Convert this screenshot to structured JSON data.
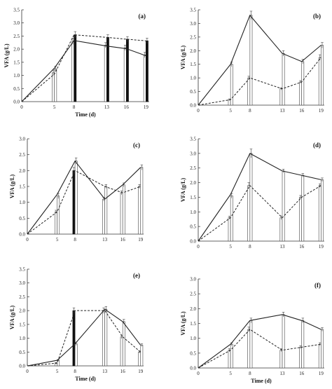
{
  "figure": {
    "xlabel": "Time (d)",
    "ylabel": "VFA (g/L)"
  },
  "chart_data": [
    {
      "type": "line",
      "panel": "(a)",
      "show_xlabel": true,
      "show_ylabel": true,
      "xlabel": "Time (d)",
      "ylabel": "VFA (g/L)",
      "x": [
        0,
        5,
        8,
        13,
        16,
        19
      ],
      "xlim": [
        0,
        19.5
      ],
      "ylim": [
        0,
        3.5
      ],
      "x_ticks": [
        "0",
        "5",
        "8",
        "13",
        "16",
        "19"
      ],
      "y_ticks": [
        "0.0",
        "0.5",
        "1.0",
        "1.5",
        "2.0",
        "2.5",
        "3.0",
        "3.5"
      ],
      "series": [
        {
          "style": "solid",
          "values": [
            0,
            1.28,
            2.33,
            2.12,
            2.02,
            1.75
          ]
        },
        {
          "style": "dashed",
          "values": [
            0,
            1.05,
            2.55,
            2.45,
            2.38,
            2.32
          ]
        }
      ],
      "bars": [
        {
          "x": 5,
          "fill": "white",
          "value": 1.1,
          "err": 0.1
        },
        {
          "x": 5,
          "fill": "white",
          "value": 1.25,
          "err": 0.1
        },
        {
          "x": 8,
          "fill": "white",
          "value": 2.3,
          "err": 0.12
        },
        {
          "x": 8,
          "fill": "black",
          "value": 2.55,
          "err": 0.12
        },
        {
          "x": 13,
          "fill": "white",
          "value": 2.15,
          "err": 0.1
        },
        {
          "x": 13,
          "fill": "black",
          "value": 2.45,
          "err": 0.1
        },
        {
          "x": 16,
          "fill": "white",
          "value": 2.05,
          "err": 0.1
        },
        {
          "x": 16,
          "fill": "black",
          "value": 2.38,
          "err": 0.1
        },
        {
          "x": 19,
          "fill": "white",
          "value": 1.78,
          "err": 0.1
        },
        {
          "x": 19,
          "fill": "black",
          "value": 2.32,
          "err": 0.1
        }
      ]
    },
    {
      "type": "line",
      "panel": "(b)",
      "show_xlabel": false,
      "show_ylabel": true,
      "xlabel": "Time (d)",
      "ylabel": "VFA (g/L)",
      "x": [
        0,
        5,
        8,
        13,
        16,
        19
      ],
      "xlim": [
        0,
        19.5
      ],
      "ylim": [
        0,
        3.5
      ],
      "x_ticks": [
        "0",
        "5",
        "8",
        "13",
        "16",
        "19"
      ],
      "y_ticks": [
        "0.0",
        "0.5",
        "1.0",
        "1.5",
        "2.0",
        "2.5",
        "3.0",
        "3.5"
      ],
      "series": [
        {
          "style": "solid",
          "values": [
            0,
            1.5,
            3.3,
            1.9,
            1.6,
            2.2
          ]
        },
        {
          "style": "dashed",
          "values": [
            0,
            0.2,
            1.0,
            0.6,
            0.85,
            1.75
          ]
        }
      ],
      "bars": [
        {
          "x": 5,
          "fill": "white",
          "value": 0.2,
          "err": 0.03
        },
        {
          "x": 5,
          "fill": "white",
          "value": 1.5,
          "err": 0.08
        },
        {
          "x": 8,
          "fill": "white",
          "value": 1.0,
          "err": 0.06
        },
        {
          "x": 8,
          "fill": "white",
          "value": 3.3,
          "err": 0.15
        },
        {
          "x": 13,
          "fill": "white",
          "value": 0.6,
          "err": 0.04
        },
        {
          "x": 13,
          "fill": "white",
          "value": 1.9,
          "err": 0.1
        },
        {
          "x": 16,
          "fill": "white",
          "value": 0.85,
          "err": 0.05
        },
        {
          "x": 16,
          "fill": "white",
          "value": 1.6,
          "err": 0.08
        },
        {
          "x": 19,
          "fill": "white",
          "value": 1.75,
          "err": 0.1
        },
        {
          "x": 19,
          "fill": "white",
          "value": 2.2,
          "err": 0.1
        }
      ]
    },
    {
      "type": "line",
      "panel": "(c)",
      "show_xlabel": false,
      "show_ylabel": true,
      "xlabel": "Time (d)",
      "ylabel": "VFA (g/L)",
      "x": [
        0,
        5,
        8,
        13,
        16,
        19
      ],
      "xlim": [
        0,
        19.5
      ],
      "ylim": [
        0,
        3.0
      ],
      "x_ticks": [
        "0",
        "5",
        "8",
        "13",
        "16",
        "19"
      ],
      "y_ticks": [
        "0.0",
        "0.5",
        "1.0",
        "1.5",
        "2.0",
        "2.5",
        "3.0"
      ],
      "series": [
        {
          "style": "solid",
          "values": [
            0,
            1.25,
            2.3,
            1.1,
            1.55,
            2.1
          ]
        },
        {
          "style": "dashed",
          "values": [
            0,
            0.7,
            2.0,
            1.5,
            1.3,
            1.5
          ]
        }
      ],
      "bars": [
        {
          "x": 5,
          "fill": "white",
          "value": 0.7,
          "err": 0.05
        },
        {
          "x": 5,
          "fill": "white",
          "value": 1.2,
          "err": 0.08
        },
        {
          "x": 8,
          "fill": "black",
          "value": 2.0,
          "err": 0.1
        },
        {
          "x": 8,
          "fill": "white",
          "value": 2.3,
          "err": 0.1
        },
        {
          "x": 13,
          "fill": "white",
          "value": 1.1,
          "err": 0.06
        },
        {
          "x": 13,
          "fill": "white",
          "value": 1.5,
          "err": 0.06
        },
        {
          "x": 16,
          "fill": "white",
          "value": 1.3,
          "err": 0.06
        },
        {
          "x": 16,
          "fill": "white",
          "value": 1.55,
          "err": 0.06
        },
        {
          "x": 19,
          "fill": "white",
          "value": 1.5,
          "err": 0.06
        },
        {
          "x": 19,
          "fill": "white",
          "value": 2.1,
          "err": 0.08
        }
      ]
    },
    {
      "type": "line",
      "panel": "(d)",
      "show_xlabel": false,
      "show_ylabel": true,
      "xlabel": "Time (d)",
      "ylabel": "VFA (g/L)",
      "x": [
        0,
        5,
        8,
        13,
        16,
        19
      ],
      "xlim": [
        0,
        19.5
      ],
      "ylim": [
        0,
        3.5
      ],
      "x_ticks": [
        "0",
        "5",
        "8",
        "13",
        "16",
        "19"
      ],
      "y_ticks": [
        "0.0",
        "0.5",
        "1.0",
        "1.5",
        "2.0",
        "2.5",
        "3.0",
        "3.5"
      ],
      "series": [
        {
          "style": "solid",
          "values": [
            0,
            1.6,
            3.0,
            2.4,
            2.25,
            2.1
          ]
        },
        {
          "style": "dashed",
          "values": [
            0,
            0.8,
            1.9,
            0.8,
            1.5,
            1.9
          ]
        }
      ],
      "bars": [
        {
          "x": 5,
          "fill": "white",
          "value": 0.8,
          "err": 0.05
        },
        {
          "x": 5,
          "fill": "white",
          "value": 1.55,
          "err": 0.08
        },
        {
          "x": 8,
          "fill": "white",
          "value": 1.9,
          "err": 0.1
        },
        {
          "x": 8,
          "fill": "white",
          "value": 3.0,
          "err": 0.15
        },
        {
          "x": 13,
          "fill": "white",
          "value": 0.8,
          "err": 0.06
        },
        {
          "x": 13,
          "fill": "white",
          "value": 2.4,
          "err": 0.06
        },
        {
          "x": 16,
          "fill": "white",
          "value": 1.5,
          "err": 0.06
        },
        {
          "x": 16,
          "fill": "white",
          "value": 2.25,
          "err": 0.06
        },
        {
          "x": 19,
          "fill": "white",
          "value": 1.9,
          "err": 0.06
        },
        {
          "x": 19,
          "fill": "white",
          "value": 2.1,
          "err": 0.06
        }
      ]
    },
    {
      "type": "line",
      "panel": "(e)",
      "show_xlabel": true,
      "show_ylabel": true,
      "xlabel": "Time (d)",
      "ylabel": "VFA (g/L)",
      "x": [
        0,
        5,
        8,
        13,
        16,
        19
      ],
      "xlim": [
        0,
        19.5
      ],
      "ylim": [
        0,
        3.5
      ],
      "x_ticks": [
        "0",
        "5",
        "8",
        "13",
        "16",
        "19"
      ],
      "y_ticks": [
        "0.0",
        "0.5",
        "1.0",
        "1.5",
        "2.0",
        "2.5",
        "3.0",
        "3.5"
      ],
      "series": [
        {
          "style": "solid",
          "values": [
            0,
            0.2,
            0.8,
            2.05,
            1.6,
            0.75
          ]
        },
        {
          "style": "dashed",
          "values": [
            0,
            0.1,
            2.0,
            2.0,
            1.05,
            0.5
          ]
        }
      ],
      "bars": [
        {
          "x": 5,
          "fill": "white",
          "value": 0.1,
          "err": 0.02
        },
        {
          "x": 5,
          "fill": "white",
          "value": 0.2,
          "err": 0.03
        },
        {
          "x": 8,
          "fill": "black",
          "value": 2.0,
          "err": 0.1
        },
        {
          "x": 8,
          "fill": "white",
          "value": 0.8,
          "err": 0.06
        },
        {
          "x": 13,
          "fill": "white",
          "value": 2.0,
          "err": 0.1
        },
        {
          "x": 13,
          "fill": "white",
          "value": 2.05,
          "err": 0.1
        },
        {
          "x": 16,
          "fill": "white",
          "value": 1.05,
          "err": 0.06
        },
        {
          "x": 16,
          "fill": "white",
          "value": 1.6,
          "err": 0.08
        },
        {
          "x": 19,
          "fill": "white",
          "value": 0.5,
          "err": 0.04
        },
        {
          "x": 19,
          "fill": "white",
          "value": 0.75,
          "err": 0.05
        }
      ]
    },
    {
      "type": "line",
      "panel": "(f)",
      "show_xlabel": true,
      "show_ylabel": true,
      "xlabel": "Time (d)",
      "ylabel": "VFA (g/L)",
      "x": [
        0,
        5,
        8,
        13,
        16,
        19
      ],
      "xlim": [
        0,
        19.5
      ],
      "ylim": [
        0,
        3.0
      ],
      "x_ticks": [
        "0",
        "5",
        "8",
        "13",
        "16",
        "19"
      ],
      "y_ticks": [
        "0.0",
        "0.5",
        "1.0",
        "1.5",
        "2.0",
        "2.5",
        "3.0"
      ],
      "series": [
        {
          "style": "solid",
          "values": [
            0,
            0.8,
            1.6,
            1.8,
            1.6,
            1.3
          ]
        },
        {
          "style": "dashed",
          "values": [
            0,
            0.6,
            1.3,
            0.6,
            0.7,
            0.8
          ]
        }
      ],
      "bars": [
        {
          "x": 5,
          "fill": "white",
          "value": 0.6,
          "err": 0.05
        },
        {
          "x": 5,
          "fill": "white",
          "value": 0.8,
          "err": 0.05
        },
        {
          "x": 8,
          "fill": "white",
          "value": 1.3,
          "err": 0.08
        },
        {
          "x": 8,
          "fill": "white",
          "value": 1.6,
          "err": 0.08
        },
        {
          "x": 13,
          "fill": "white",
          "value": 0.6,
          "err": 0.05
        },
        {
          "x": 13,
          "fill": "white",
          "value": 1.8,
          "err": 0.08
        },
        {
          "x": 16,
          "fill": "white",
          "value": 0.7,
          "err": 0.05
        },
        {
          "x": 16,
          "fill": "white",
          "value": 1.6,
          "err": 0.08
        },
        {
          "x": 19,
          "fill": "white",
          "value": 0.8,
          "err": 0.05
        },
        {
          "x": 19,
          "fill": "white",
          "value": 1.3,
          "err": 0.06
        }
      ]
    }
  ]
}
